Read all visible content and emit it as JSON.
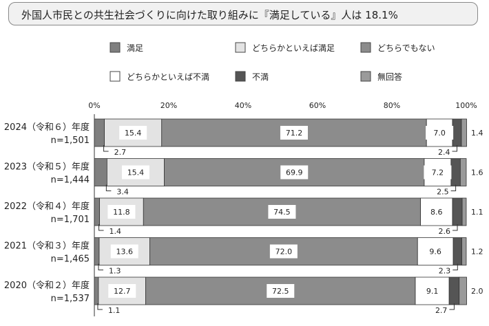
{
  "title": "外国人市民との共生社会づくりに向けた取り組みに『満足している』人は 18.1%",
  "colors": {
    "manzoku": "#7f7f7f",
    "dochira_manzoku": "#e3e3e3",
    "dochira_demo": "#8c8c8c",
    "dochira_fuman": "#ffffff",
    "fuman": "#555555",
    "mukaito": "#9a9a9a"
  },
  "chart_data": {
    "type": "bar",
    "orientation": "horizontal",
    "stacked": true,
    "percent": true,
    "title": "外国人市民との共生社会づくりに向けた取り組みに『満足している』人は 18.1%",
    "xlim": [
      0,
      100
    ],
    "x_ticks": [
      "0%",
      "20%",
      "40%",
      "60%",
      "80%",
      "100%"
    ],
    "legend_position": "top",
    "grid": false,
    "categories": [
      {
        "line1": "2024（令和６）年度",
        "line2": "n=1,501"
      },
      {
        "line1": "2023（令和５）年度",
        "line2": "n=1,444"
      },
      {
        "line1": "2022（令和４）年度",
        "line2": "n=1,701"
      },
      {
        "line1": "2021（令和３）年度",
        "line2": "n=1,465"
      },
      {
        "line1": "2020（令和２）年度",
        "line2": "n=1,537"
      }
    ],
    "series": [
      {
        "name": "満足",
        "key": "manzoku",
        "values": [
          2.7,
          3.4,
          1.4,
          1.3,
          1.1
        ]
      },
      {
        "name": "どちらかといえば満足",
        "key": "dochira_manzoku",
        "values": [
          15.4,
          15.4,
          11.8,
          13.6,
          12.7
        ]
      },
      {
        "name": "どちらでもない",
        "key": "dochira_demo",
        "values": [
          71.2,
          69.9,
          74.5,
          72.0,
          72.5
        ]
      },
      {
        "name": "どちらかといえば不満",
        "key": "dochira_fuman",
        "values": [
          7.0,
          7.2,
          8.6,
          9.6,
          9.1
        ]
      },
      {
        "name": "不満",
        "key": "fuman",
        "values": [
          2.4,
          2.5,
          2.6,
          2.3,
          2.7
        ]
      },
      {
        "name": "無回答",
        "key": "mukaito",
        "values": [
          1.4,
          1.6,
          1.1,
          1.2,
          2.0
        ]
      }
    ],
    "value_labels": {
      "inside": [
        [
          "15.4",
          "71.2",
          "7.0"
        ],
        [
          "15.4",
          "69.9",
          "7.2"
        ],
        [
          "11.8",
          "74.5",
          "8.6"
        ],
        [
          "13.6",
          "72.0",
          "9.6"
        ],
        [
          "12.7",
          "72.5",
          "9.1"
        ]
      ],
      "manzoku": [
        "2.7",
        "3.4",
        "1.4",
        "1.3",
        "1.1"
      ],
      "fuman": [
        "2.4",
        "2.5",
        "2.6",
        "2.3",
        "2.7"
      ],
      "mukaito": [
        "1.4",
        "1.6",
        "1.1",
        "1.2",
        "2.0"
      ]
    }
  }
}
